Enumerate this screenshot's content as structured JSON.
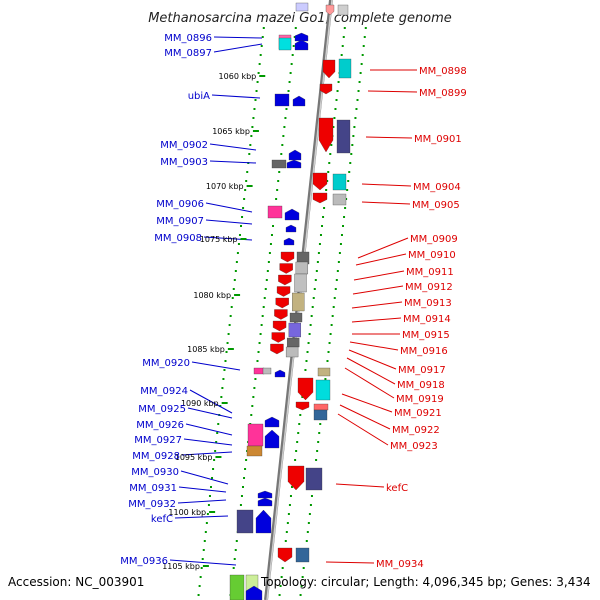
{
  "title": "Methanosarcina mazei Go1, complete genome",
  "footer": {
    "accession": "Accession: NC_003901",
    "topology": "Topology: circular; Length: 4,096,345 bp; Genes: 3,434"
  },
  "colors": {
    "forward_strand": "#0000dd",
    "reverse_strand": "#ee0000",
    "label_left": "#0000cc",
    "label_right": "#dd0000",
    "tick_dots": "#009900",
    "backbone": "#999999"
  },
  "kbp_ticks": [
    "1060 kbp",
    "1065 kbp",
    "1070 kbp",
    "1075 kbp",
    "1080 kbp",
    "1085 kbp",
    "1090 kbp",
    "1095 kbp",
    "1100 kbp",
    "1105 kbp"
  ],
  "left_labels": [
    "MM_0896",
    "MM_0897",
    "ubiA",
    "MM_0902",
    "MM_0903",
    "MM_0906",
    "MM_0907",
    "MM_0908",
    "MM_0920",
    "MM_0924",
    "MM_0925",
    "MM_0926",
    "MM_0927",
    "MM_0928",
    "MM_0930",
    "MM_0931",
    "MM_0932",
    "kefC",
    "MM_0936"
  ],
  "right_labels": [
    "MM_0898",
    "MM_0899",
    "MM_0901",
    "MM_0904",
    "MM_0905",
    "MM_0909",
    "MM_0910",
    "MM_0911",
    "MM_0912",
    "MM_0913",
    "MM_0914",
    "MM_0915",
    "MM_0916",
    "MM_0917",
    "MM_0918",
    "MM_0919",
    "MM_0921",
    "MM_0922",
    "MM_0923",
    "kefC",
    "MM_0934"
  ]
}
